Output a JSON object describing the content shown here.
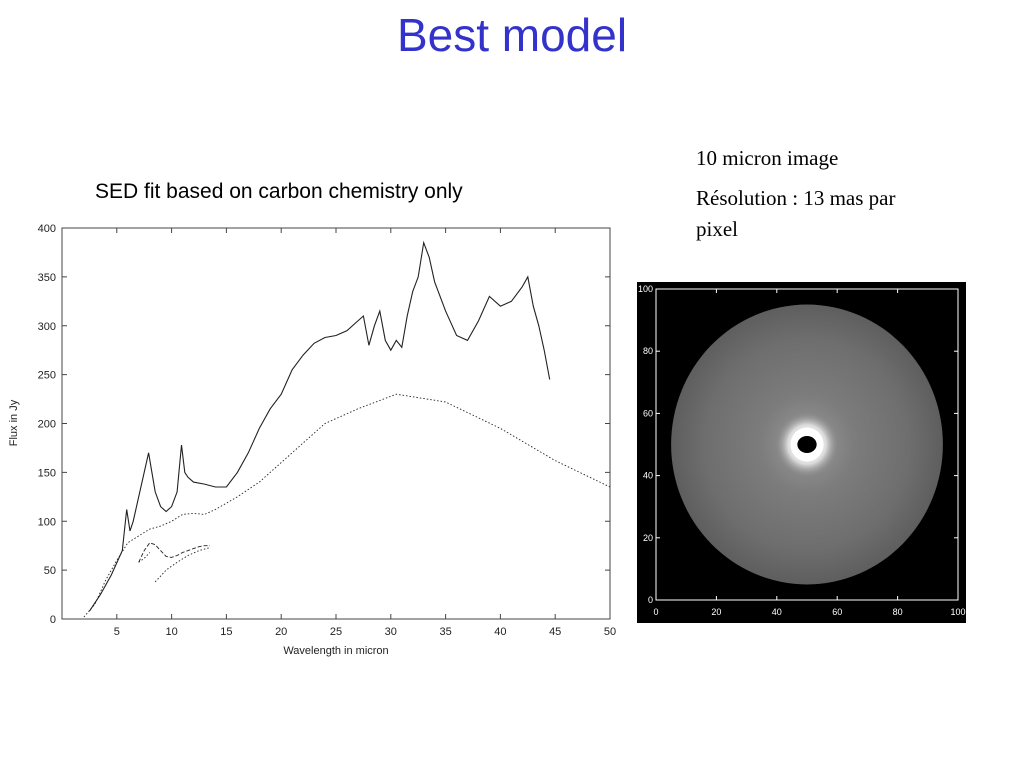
{
  "slide": {
    "title": "Best model",
    "sed_caption": "SED fit based on carbon chemistry only",
    "image_caption_line1": "10 micron image",
    "image_caption_line2": "Résolution : 13 mas par pixel"
  },
  "chart_data": [
    {
      "type": "line",
      "title": "",
      "xlabel": "Wavelength in micron",
      "ylabel": "Flux in Jy",
      "xlim": [
        0,
        50
      ],
      "ylim": [
        0,
        400
      ],
      "xticks": [
        5,
        10,
        15,
        20,
        25,
        30,
        35,
        40,
        45,
        50
      ],
      "yticks": [
        0,
        50,
        100,
        150,
        200,
        250,
        300,
        350,
        400
      ],
      "grid": false,
      "series": [
        {
          "style": "solid",
          "x": [
            2.5,
            3.5,
            4.5,
            5.5,
            5.9,
            6.2,
            6.5,
            7.0,
            7.5,
            7.9,
            8.2,
            8.5,
            9.0,
            9.5,
            10.0,
            10.5,
            10.9,
            11.2,
            11.5,
            12.0,
            13.0,
            14.0,
            15.0,
            16.0,
            17.0,
            18.0,
            19.0,
            20.0,
            21.0,
            22.0,
            23.0,
            24.0,
            25.0,
            26.0,
            27.0,
            27.5,
            28.0,
            28.5,
            29.0,
            29.5,
            30.0,
            30.5,
            31.0,
            31.5,
            32.0,
            32.5,
            33.0,
            33.5,
            34.0,
            35.0,
            36.0,
            37.0,
            38.0,
            39.0,
            40.0,
            41.0,
            42.0,
            42.5,
            43.0,
            43.5,
            44.0,
            44.5
          ],
          "y": [
            8,
            25,
            45,
            70,
            112,
            90,
            100,
            125,
            150,
            170,
            150,
            130,
            115,
            110,
            115,
            130,
            178,
            150,
            145,
            140,
            138,
            135,
            135,
            150,
            170,
            195,
            215,
            230,
            255,
            270,
            282,
            288,
            290,
            295,
            305,
            310,
            280,
            300,
            315,
            285,
            275,
            285,
            278,
            310,
            335,
            350,
            385,
            370,
            345,
            315,
            290,
            285,
            305,
            330,
            320,
            325,
            340,
            350,
            320,
            300,
            275,
            245
          ]
        },
        {
          "style": "dotted",
          "x": [
            2,
            3,
            4,
            5,
            6,
            7,
            8,
            9,
            10,
            11,
            12,
            13,
            14,
            16,
            18,
            20,
            22,
            24,
            27,
            30.5,
            35,
            40,
            45,
            50
          ],
          "y": [
            2,
            15,
            40,
            60,
            78,
            85,
            92,
            95,
            100,
            107,
            108,
            107,
            112,
            125,
            140,
            160,
            180,
            200,
            215,
            230,
            222,
            195,
            162,
            135
          ]
        },
        {
          "style": "dashed",
          "x": [
            7.0,
            7.5,
            8.0,
            8.5,
            9.0,
            9.5,
            10.0,
            10.5,
            11.0,
            11.5,
            12.0,
            12.5,
            13.0,
            13.5
          ],
          "y": [
            58,
            70,
            78,
            76,
            70,
            64,
            63,
            65,
            68,
            70,
            72,
            74,
            75,
            75
          ]
        },
        {
          "style": "dotted",
          "x": [
            7.0,
            7.5,
            8.0
          ],
          "y": [
            58,
            62,
            68
          ]
        },
        {
          "style": "dotted",
          "x": [
            8.5,
            9.5,
            10.5,
            11.5,
            12.5,
            13.5
          ],
          "y": [
            38,
            50,
            58,
            65,
            70,
            73
          ]
        }
      ]
    },
    {
      "type": "heatmap",
      "title": "",
      "xlim": [
        0,
        100
      ],
      "ylim": [
        0,
        100
      ],
      "xticks": [
        0,
        20,
        40,
        60,
        80,
        100
      ],
      "yticks": [
        0,
        20,
        40,
        60,
        80,
        100
      ],
      "background": "#000000",
      "disk_color": "#808080",
      "ring_color": "#ffffff",
      "center": [
        50,
        50
      ],
      "description_values": {
        "disk_radius": 45,
        "ring_radius": 5.5,
        "hole_radius": 3.2
      }
    }
  ]
}
